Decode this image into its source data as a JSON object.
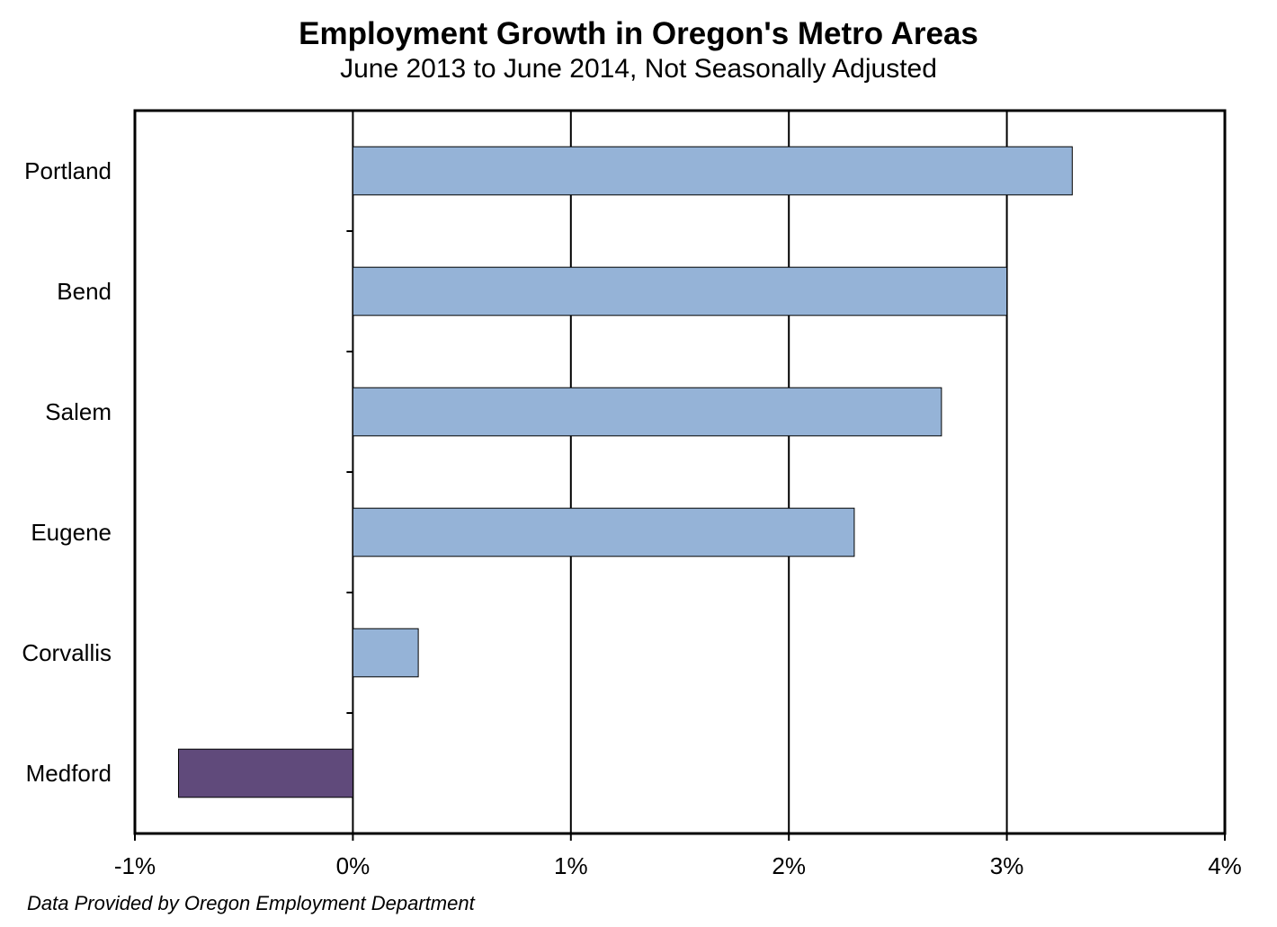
{
  "chart_data": {
    "type": "bar",
    "orientation": "horizontal",
    "title": "Employment Growth in Oregon's Metro Areas",
    "subtitle": "June 2013 to June 2014, Not Seasonally Adjusted",
    "categories": [
      "Portland",
      "Bend",
      "Salem",
      "Eugene",
      "Corvallis",
      "Medford"
    ],
    "values": [
      3.3,
      3.0,
      2.7,
      2.3,
      0.3,
      -0.8
    ],
    "value_unit": "%",
    "xlim": [
      -1,
      4
    ],
    "x_ticks": [
      -1,
      0,
      1,
      2,
      3,
      4
    ],
    "x_tick_labels": [
      "-1%",
      "0%",
      "1%",
      "2%",
      "3%",
      "4%"
    ],
    "xlabel": "",
    "ylabel": "",
    "grid": "vertical",
    "legend": "none",
    "colors": {
      "positive": "#95b3d7",
      "negative": "#604a7b",
      "bar_stroke": "#000000",
      "axis": "#000000"
    },
    "source": "Data Provided by Oregon Employment Department"
  }
}
